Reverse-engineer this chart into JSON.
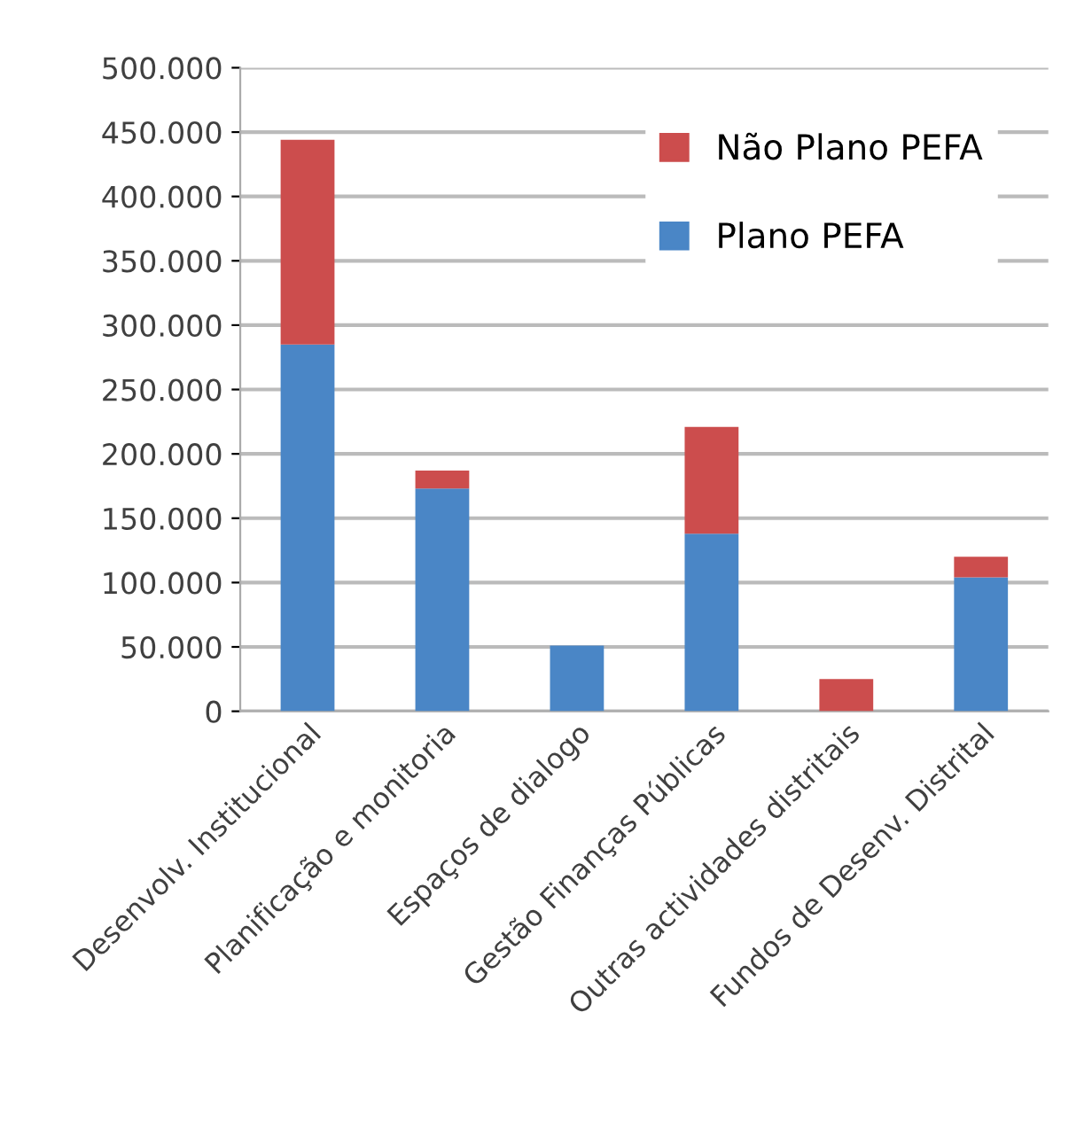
{
  "chart_data": {
    "type": "bar",
    "stacked": true,
    "categories": [
      "Desenvolv. Institucional",
      "Planificação e monitoria",
      "Espaços de dialogo",
      "Gestão Finanças Públicas",
      "Outras actividades distritais",
      "Fundos de Desenv. Distrital"
    ],
    "series": [
      {
        "name": "Plano PEFA",
        "color": "#4a86c6",
        "values": [
          285000,
          173000,
          51000,
          138000,
          0,
          104000
        ]
      },
      {
        "name": "Não Plano PEFA",
        "color": "#cc4d4d",
        "values": [
          159000,
          14000,
          0,
          83000,
          25000,
          16000
        ]
      }
    ],
    "ylim": [
      0,
      500000
    ],
    "yticks": [
      {
        "value": 0,
        "label": "0"
      },
      {
        "value": 50000,
        "label": "50.000"
      },
      {
        "value": 100000,
        "label": "100.000"
      },
      {
        "value": 150000,
        "label": "150.000"
      },
      {
        "value": 200000,
        "label": "200.000"
      },
      {
        "value": 250000,
        "label": "250.000"
      },
      {
        "value": 300000,
        "label": "300.000"
      },
      {
        "value": 350000,
        "label": "350.000"
      },
      {
        "value": 400000,
        "label": "400.000"
      },
      {
        "value": 450000,
        "label": "450.000"
      },
      {
        "value": 500000,
        "label": "500.000"
      }
    ],
    "grid": "y",
    "legend": "top right"
  }
}
